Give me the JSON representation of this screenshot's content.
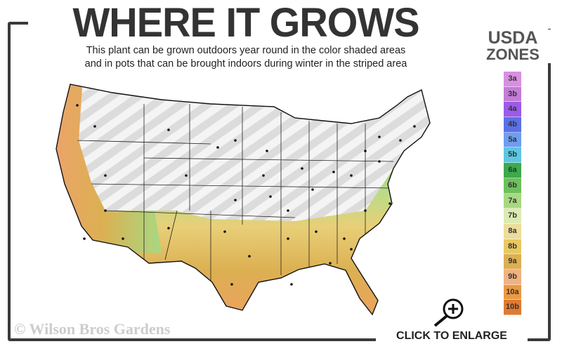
{
  "title": "WHERE IT GROWS",
  "subtitle_line1": "This plant can be grown outdoors year round in the color shaded areas",
  "subtitle_line2": "and in pots that can be brought indoors during winter in the striped area",
  "legend": {
    "title_line1": "USDA",
    "title_line2": "ZONES",
    "zones": [
      {
        "label": "3a",
        "color": "#d98fe0"
      },
      {
        "label": "3b",
        "color": "#c47cd8"
      },
      {
        "label": "4a",
        "color": "#9a5ce8"
      },
      {
        "label": "4b",
        "color": "#5c70e6"
      },
      {
        "label": "5a",
        "color": "#6c9ef0"
      },
      {
        "label": "5b",
        "color": "#5ec6e2"
      },
      {
        "label": "6a",
        "color": "#3caa4c"
      },
      {
        "label": "6b",
        "color": "#6ec05c"
      },
      {
        "label": "7a",
        "color": "#a8d882"
      },
      {
        "label": "7b",
        "color": "#dcebb2"
      },
      {
        "label": "8a",
        "color": "#eddc9a"
      },
      {
        "label": "8b",
        "color": "#e8c862"
      },
      {
        "label": "9a",
        "color": "#dcb052"
      },
      {
        "label": "9b",
        "color": "#f0b282"
      },
      {
        "label": "10a",
        "color": "#ec9842"
      },
      {
        "label": "10b",
        "color": "#e07a32"
      }
    ]
  },
  "watermark": "© Wilson Bros Gardens",
  "enlarge_label": "CLICK TO ENLARGE",
  "icons": {
    "enlarge": "magnifier-plus-icon"
  }
}
